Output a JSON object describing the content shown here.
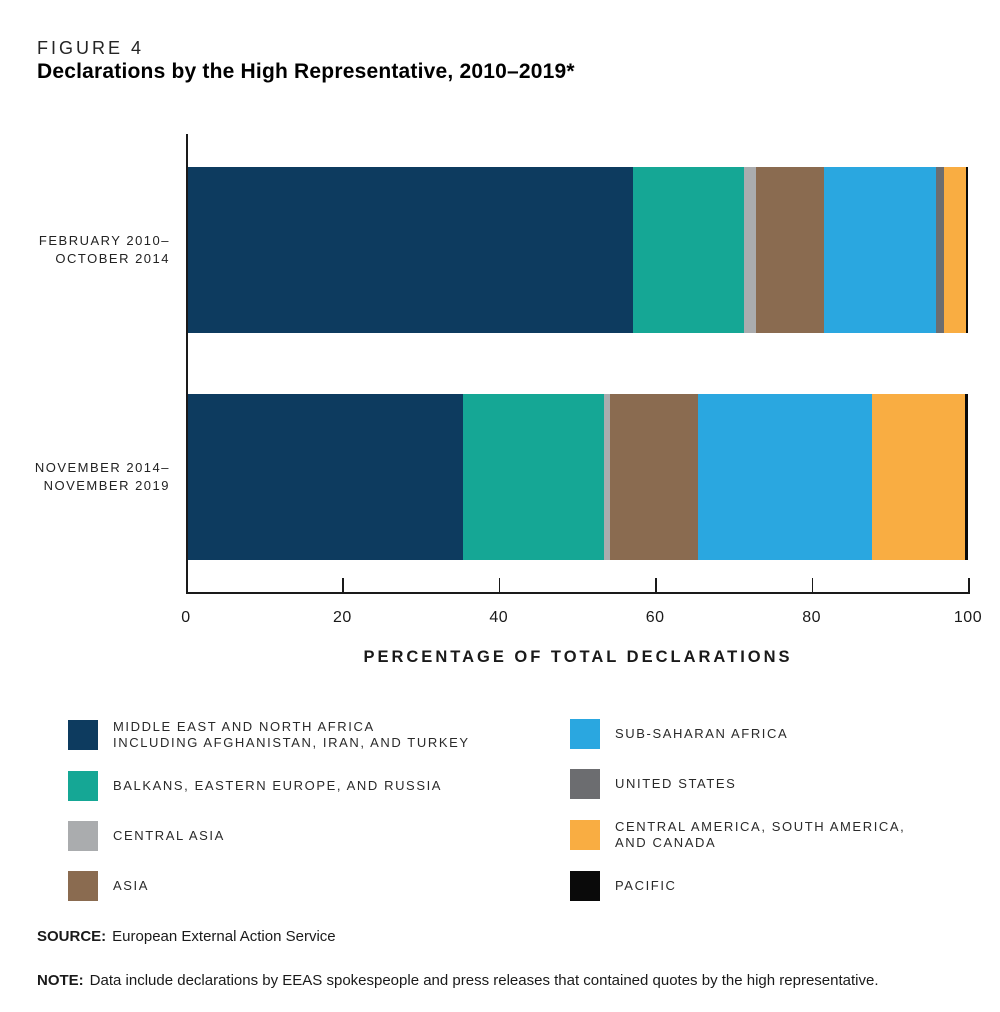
{
  "header": {
    "figure_label": "FIGURE 4",
    "title": "Declarations by the High Representative, 2010–2019*"
  },
  "chart_data": {
    "type": "bar",
    "orientation": "horizontal",
    "stacked": true,
    "unit": "percent",
    "title": "Declarations by the High Representative, 2010–2019*",
    "categories": [
      {
        "lines": [
          "FEBRUARY 2010–",
          "OCTOBER 2014"
        ]
      },
      {
        "lines": [
          "NOVEMBER 2014–",
          "NOVEMBER 2019"
        ]
      }
    ],
    "series": [
      {
        "name": "Middle East and North Africa including Afghanistan, Iran, and Turkey",
        "legend_lines": [
          "MIDDLE EAST AND NORTH AFRICA",
          "INCLUDING AFGHANISTAN, IRAN, AND TURKEY"
        ],
        "color": "#0d3b5f",
        "values": [
          57.0,
          35.3
        ]
      },
      {
        "name": "Balkans, Eastern Europe, and Russia",
        "legend_lines": [
          "BALKANS, EASTERN EUROPE, AND RUSSIA"
        ],
        "color": "#15a795",
        "values": [
          14.2,
          18.0
        ]
      },
      {
        "name": "Central Asia",
        "legend_lines": [
          "CENTRAL ASIA"
        ],
        "color": "#aaacae",
        "values": [
          1.6,
          0.8
        ]
      },
      {
        "name": "Asia",
        "legend_lines": [
          "ASIA"
        ],
        "color": "#8a6b50",
        "values": [
          8.7,
          11.3
        ]
      },
      {
        "name": "Sub-Saharan Africa",
        "legend_lines": [
          "SUB-SAHARAN AFRICA"
        ],
        "color": "#2aa7e0",
        "values": [
          14.3,
          22.2
        ]
      },
      {
        "name": "United States",
        "legend_lines": [
          "UNITED STATES"
        ],
        "color": "#6c6d70",
        "values": [
          1.1,
          0.1
        ]
      },
      {
        "name": "Central America, South America, and Canada",
        "legend_lines": [
          "CENTRAL AMERICA, SOUTH AMERICA,",
          "AND CANADA"
        ],
        "color": "#f9ad42",
        "values": [
          2.8,
          11.9
        ]
      },
      {
        "name": "Pacific",
        "legend_lines": [
          "PACIFIC"
        ],
        "color": "#0a0a0a",
        "values": [
          0.3,
          0.4
        ]
      }
    ],
    "x_axis": {
      "range": [
        0,
        100
      ],
      "ticks": [
        0,
        20,
        40,
        60,
        80,
        100
      ],
      "label": "PERCENTAGE OF TOTAL DECLARATIONS"
    },
    "legend_position": "bottom",
    "grid": false
  },
  "legend": {
    "column_split": 4
  },
  "footer": {
    "source_label": "SOURCE:",
    "source_text": "European External Action Service",
    "note_label": "NOTE:",
    "note_text": "Data include declarations by EEAS spokespeople and press releases that contained quotes by the high representative."
  }
}
